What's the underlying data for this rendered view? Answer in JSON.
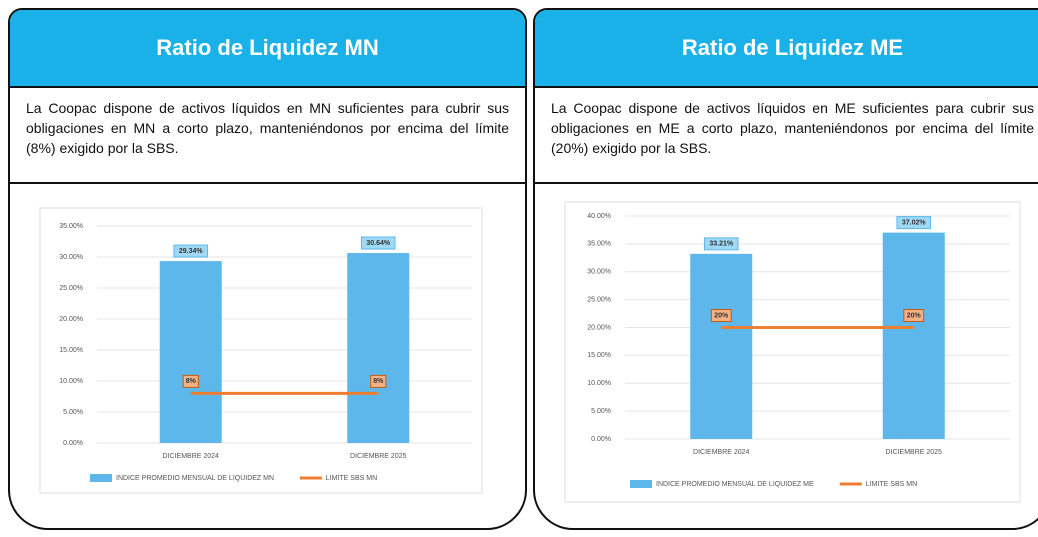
{
  "panels": [
    {
      "title": "Ratio de Liquidez MN",
      "text": "La Coopac dispone de activos líquidos en MN suficientes para cubrir sus obligaciones en MN a corto plazo, manteniéndonos por encima del límite (8%) exigido por la SBS."
    },
    {
      "title": "Ratio de Liquidez ME",
      "text": "La Coopac dispone de activos líquidos en ME suficientes para cubrir sus obligaciones en ME a corto plazo, manteniéndonos por encima del límite (20%) exigido por la SBS."
    }
  ],
  "chart_data": [
    {
      "type": "bar",
      "categories": [
        "DICIEMBRE 2024",
        "DICIEMBRE 2025"
      ],
      "series": [
        {
          "name": "INDICE PROMEDIO MENSUAL DE LIQUIDEZ MN",
          "color": "#5db7ea",
          "values": [
            29.34,
            30.64
          ],
          "value_labels": [
            "29.34%",
            "30.64%"
          ]
        },
        {
          "name": "LIMITE SBS MN",
          "type": "line",
          "color": "#ed7d31",
          "values": [
            8,
            8
          ],
          "value_labels": [
            "8%",
            "8%"
          ]
        }
      ],
      "ylim": [
        0,
        35
      ],
      "yticks": [
        {
          "value": 0,
          "label": "0.00%"
        },
        {
          "value": 5,
          "label": "5.00%"
        },
        {
          "value": 10,
          "label": "10.00%"
        },
        {
          "value": 15,
          "label": "15.00%"
        },
        {
          "value": 20,
          "label": "20.00%"
        },
        {
          "value": 25,
          "label": "25.00%"
        },
        {
          "value": 30,
          "label": "30.00%"
        },
        {
          "value": 35,
          "label": "35.00%"
        }
      ],
      "grid": true,
      "legend": "bottom"
    },
    {
      "type": "bar",
      "categories": [
        "DICIEMBRE 2024",
        "DICIEMBRE 2025"
      ],
      "series": [
        {
          "name": "INDICE PROMEDIO MENSUAL DE LIQUIDEZ ME",
          "color": "#5db7ea",
          "values": [
            33.21,
            37.02
          ],
          "value_labels": [
            "33.21%",
            "37.02%"
          ]
        },
        {
          "name": "LIMITE SBS MN",
          "type": "line",
          "color": "#ed7d31",
          "values": [
            20,
            20
          ],
          "value_labels": [
            "20%",
            "20%"
          ]
        }
      ],
      "ylim": [
        0,
        40
      ],
      "yticks": [
        {
          "value": 0,
          "label": "0.00%"
        },
        {
          "value": 5,
          "label": "5.00%"
        },
        {
          "value": 10,
          "label": "10.00%"
        },
        {
          "value": 15,
          "label": "15.00%"
        },
        {
          "value": 20,
          "label": "20.00%"
        },
        {
          "value": 25,
          "label": "25.00%"
        },
        {
          "value": 30,
          "label": "30.00%"
        },
        {
          "value": 35,
          "label": "35.00%"
        },
        {
          "value": 40,
          "label": "40.00%"
        }
      ],
      "grid": true,
      "legend": "bottom"
    }
  ]
}
